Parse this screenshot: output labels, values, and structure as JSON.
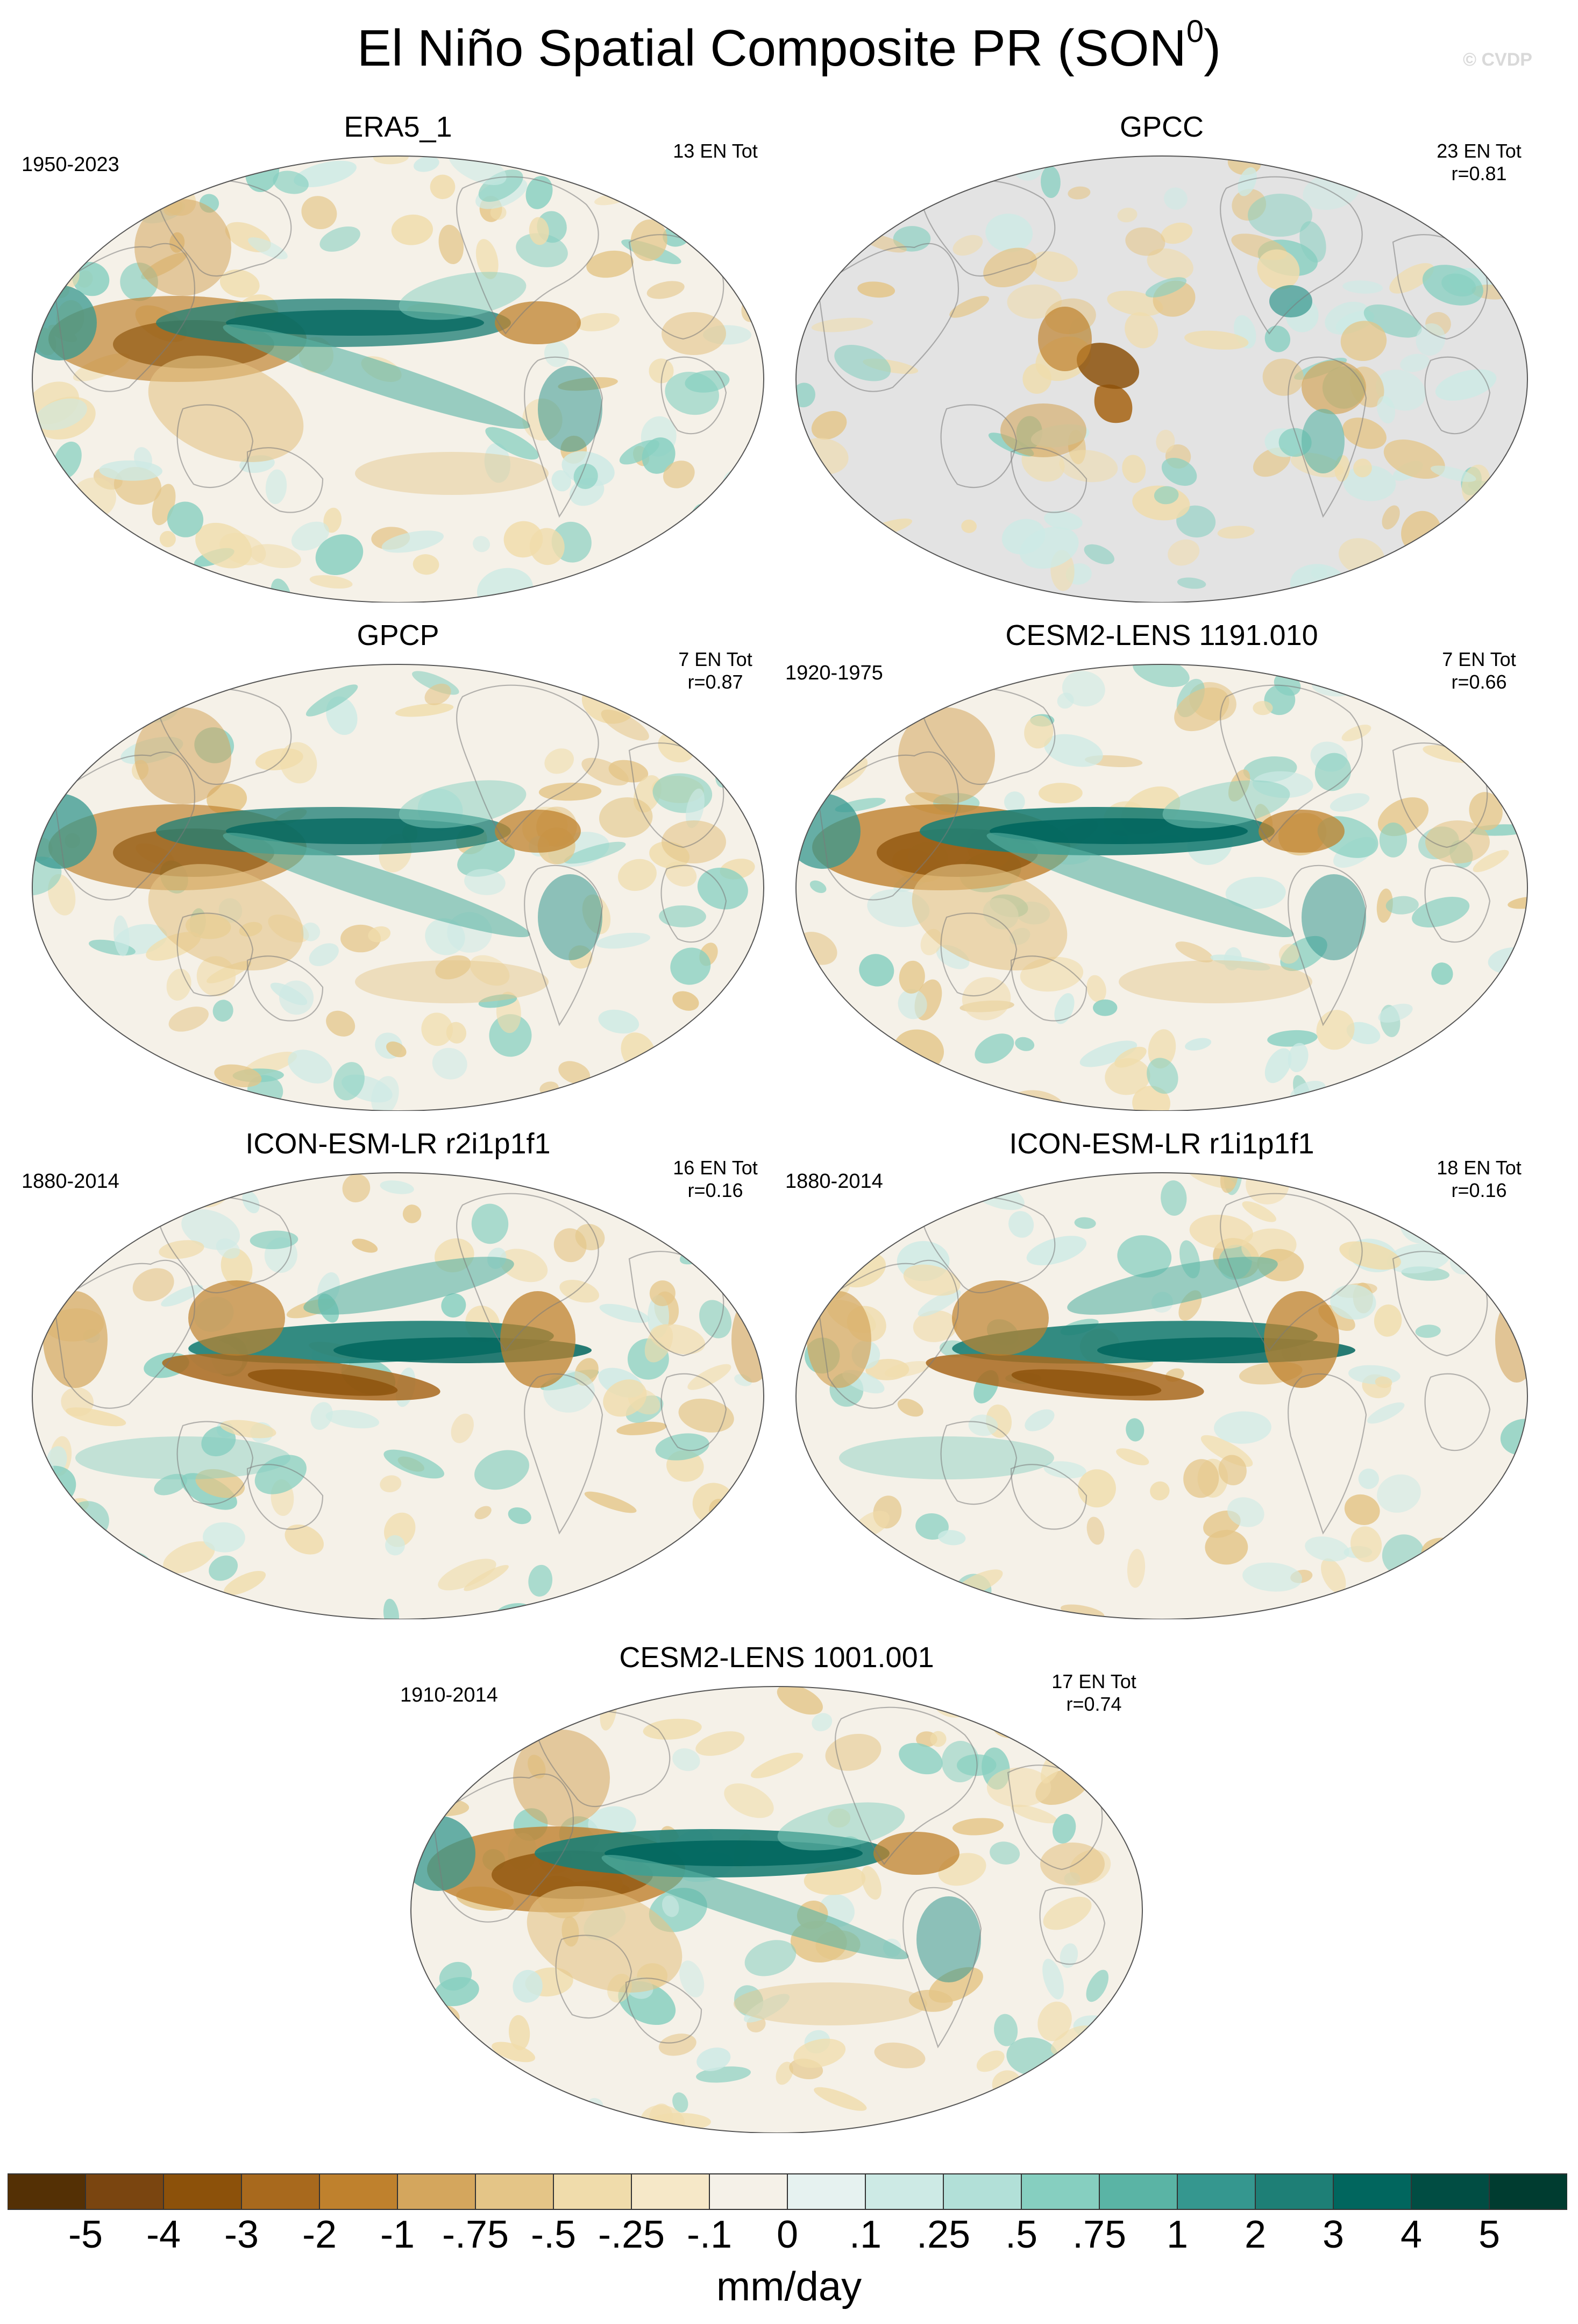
{
  "figure": {
    "title_main": "El Niño Spatial Composite PR (SON",
    "title_sup": "0",
    "title_end": ")",
    "watermark": "© CVDP"
  },
  "panels": [
    {
      "title": "ERA5_1",
      "years": "1950-2023",
      "stats": [
        "13 EN Tot"
      ],
      "style": "era5"
    },
    {
      "title": "GPCC",
      "years": "",
      "stats": [
        "23 EN Tot",
        "r=0.81"
      ],
      "style": "gpcc"
    },
    {
      "title": "GPCP",
      "years": "",
      "stats": [
        "7 EN Tot",
        "r=0.87"
      ],
      "style": "gpcp"
    },
    {
      "title": "CESM2-LENS 1191.010",
      "years": "1920-1975",
      "stats": [
        "7 EN Tot",
        "r=0.66"
      ],
      "style": "cesm"
    },
    {
      "title": "ICON-ESM-LR r2i1p1f1",
      "years": "1880-2014",
      "stats": [
        "16 EN Tot",
        "r=0.16"
      ],
      "style": "icon"
    },
    {
      "title": "ICON-ESM-LR r1i1p1f1",
      "years": "1880-2014",
      "stats": [
        "18 EN Tot",
        "r=0.16"
      ],
      "style": "icon"
    },
    {
      "title": "CESM2-LENS 1001.001",
      "years": "1910-2014",
      "stats": [
        "17 EN Tot",
        "r=0.74"
      ],
      "style": "cesm"
    }
  ],
  "colorbar": {
    "label": "mm/day",
    "ticks": [
      "-5",
      "-4",
      "-3",
      "-2",
      "-1",
      "-.75",
      "-.5",
      "-.25",
      "-.1",
      "0",
      ".1",
      ".25",
      ".5",
      ".75",
      "1",
      "2",
      "3",
      "4",
      "5"
    ],
    "colors": [
      "#543005",
      "#7a4510",
      "#8c510a",
      "#a8691d",
      "#bf812d",
      "#d4a65d",
      "#e4c587",
      "#f0dcab",
      "#f6e8c8",
      "#f5f1e8",
      "#e6f2f0",
      "#cdeae5",
      "#b2e0d8",
      "#86cfc0",
      "#5ab4a5",
      "#35978f",
      "#1e7f76",
      "#01665e",
      "#014d43",
      "#003c30"
    ]
  }
}
